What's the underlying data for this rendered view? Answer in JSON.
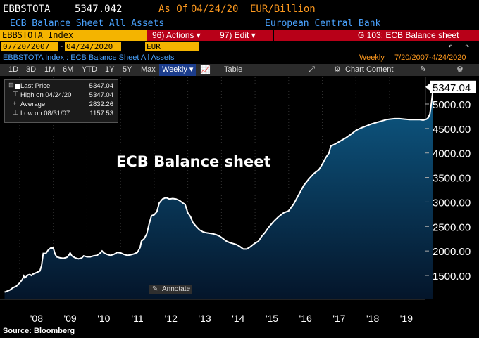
{
  "header": {
    "ticker": "EBBSTOTA",
    "price": "5347.042",
    "as_of_label": "As Of",
    "as_of_date": "04/24/20",
    "unit": "EUR/Billion",
    "description": "ECB Balance Sheet All Assets",
    "source_name": "European Central Bank"
  },
  "command_bar": {
    "index_field": "EBBSTOTA Index",
    "actions_label": "96) Actions ▾",
    "edit_label": "97) Edit ▾",
    "function_label": "G 103: ECB Balance sheet"
  },
  "date_range": {
    "start": "07/20/2007",
    "end": "04/24/2020",
    "currency": "EUR"
  },
  "subheader": {
    "title": "EBBSTOTA Index : ECB Balance Sheet All Assets",
    "frequency": "Weekly",
    "range": "7/20/2007-4/24/2020"
  },
  "toolbar": {
    "periods": [
      "1D",
      "3D",
      "1M",
      "6M",
      "YTD",
      "1Y",
      "5Y",
      "Max"
    ],
    "frequency_select": "Weekly ▾",
    "table_label": "Table",
    "chart_content_label": "Chart Content"
  },
  "legend": {
    "last_price_label": "Last Price",
    "last_price_value": "5347.04",
    "high_label": "High on 04/24/20",
    "high_value": "5347.04",
    "average_label": "Average",
    "average_value": "2832.26",
    "low_label": "Low on 08/31/07",
    "low_value": "1157.53"
  },
  "annotate_label": "Annotate",
  "source_label": "Source: Bloomberg",
  "colors": {
    "line": "#ffffff",
    "fill_top": "#0e5b87",
    "fill_bottom": "#04152a",
    "index_field": "#f4b400",
    "command_bar": "#b80018",
    "blue_text": "#4aa3ff",
    "orange_text": "#ff9a1f"
  },
  "chart_data": {
    "type": "area",
    "title": "ECB Balance sheet",
    "xlabel": "",
    "ylabel": "",
    "x_ticks": [
      "'08",
      "'09",
      "'10",
      "'11",
      "'12",
      "'13",
      "'14",
      "'15",
      "'16",
      "'17",
      "'18",
      "'19"
    ],
    "y_ticks": [
      1500,
      2000,
      2500,
      3000,
      3500,
      4000,
      4500,
      5000
    ],
    "ylim": [
      1150,
      5450
    ],
    "last_value_label": "5347.04",
    "series": [
      {
        "values": [
          [
            2007.55,
            1160
          ],
          [
            2007.7,
            1200
          ],
          [
            2007.8,
            1250
          ],
          [
            2007.9,
            1280
          ],
          [
            2008.0,
            1350
          ],
          [
            2008.08,
            1420
          ],
          [
            2008.12,
            1490
          ],
          [
            2008.15,
            1450
          ],
          [
            2008.2,
            1480
          ],
          [
            2008.25,
            1510
          ],
          [
            2008.3,
            1520
          ],
          [
            2008.35,
            1500
          ],
          [
            2008.4,
            1530
          ],
          [
            2008.5,
            1560
          ],
          [
            2008.6,
            1590
          ],
          [
            2008.65,
            1700
          ],
          [
            2008.7,
            1950
          ],
          [
            2008.78,
            1950
          ],
          [
            2008.85,
            2020
          ],
          [
            2008.92,
            2060
          ],
          [
            2009.0,
            2060
          ],
          [
            2009.05,
            1940
          ],
          [
            2009.1,
            1880
          ],
          [
            2009.2,
            1860
          ],
          [
            2009.3,
            1850
          ],
          [
            2009.4,
            1870
          ],
          [
            2009.45,
            1900
          ],
          [
            2009.5,
            1960
          ],
          [
            2009.55,
            1900
          ],
          [
            2009.65,
            1860
          ],
          [
            2009.75,
            1840
          ],
          [
            2009.85,
            1860
          ],
          [
            2009.9,
            1900
          ],
          [
            2010.0,
            1880
          ],
          [
            2010.1,
            1880
          ],
          [
            2010.2,
            1900
          ],
          [
            2010.3,
            1910
          ],
          [
            2010.4,
            1960
          ],
          [
            2010.45,
            2000
          ],
          [
            2010.5,
            1960
          ],
          [
            2010.6,
            1930
          ],
          [
            2010.7,
            1910
          ],
          [
            2010.8,
            1930
          ],
          [
            2010.9,
            1970
          ],
          [
            2011.0,
            1960
          ],
          [
            2011.1,
            1930
          ],
          [
            2011.2,
            1910
          ],
          [
            2011.3,
            1920
          ],
          [
            2011.4,
            1940
          ],
          [
            2011.5,
            1970
          ],
          [
            2011.58,
            2070
          ],
          [
            2011.62,
            2200
          ],
          [
            2011.7,
            2250
          ],
          [
            2011.78,
            2350
          ],
          [
            2011.85,
            2550
          ],
          [
            2011.92,
            2720
          ],
          [
            2012.0,
            2740
          ],
          [
            2012.08,
            2800
          ],
          [
            2012.15,
            2980
          ],
          [
            2012.25,
            3060
          ],
          [
            2012.35,
            3090
          ],
          [
            2012.45,
            3060
          ],
          [
            2012.55,
            3070
          ],
          [
            2012.65,
            3060
          ],
          [
            2012.75,
            3030
          ],
          [
            2012.85,
            2980
          ],
          [
            2012.92,
            2950
          ],
          [
            2013.0,
            2780
          ],
          [
            2013.08,
            2700
          ],
          [
            2013.15,
            2580
          ],
          [
            2013.25,
            2500
          ],
          [
            2013.35,
            2430
          ],
          [
            2013.45,
            2390
          ],
          [
            2013.55,
            2370
          ],
          [
            2013.65,
            2360
          ],
          [
            2013.75,
            2350
          ],
          [
            2013.85,
            2330
          ],
          [
            2013.95,
            2300
          ],
          [
            2014.05,
            2250
          ],
          [
            2014.15,
            2200
          ],
          [
            2014.25,
            2170
          ],
          [
            2014.35,
            2150
          ],
          [
            2014.45,
            2130
          ],
          [
            2014.55,
            2090
          ],
          [
            2014.65,
            2040
          ],
          [
            2014.75,
            2040
          ],
          [
            2014.85,
            2080
          ],
          [
            2014.92,
            2120
          ],
          [
            2015.0,
            2160
          ],
          [
            2015.1,
            2200
          ],
          [
            2015.2,
            2300
          ],
          [
            2015.3,
            2380
          ],
          [
            2015.4,
            2480
          ],
          [
            2015.55,
            2600
          ],
          [
            2015.7,
            2700
          ],
          [
            2015.85,
            2780
          ],
          [
            2016.0,
            2820
          ],
          [
            2016.15,
            2960
          ],
          [
            2016.3,
            3150
          ],
          [
            2016.45,
            3340
          ],
          [
            2016.6,
            3470
          ],
          [
            2016.75,
            3580
          ],
          [
            2016.9,
            3660
          ],
          [
            2017.0,
            3770
          ],
          [
            2017.1,
            3900
          ],
          [
            2017.2,
            4000
          ],
          [
            2017.25,
            4140
          ],
          [
            2017.4,
            4190
          ],
          [
            2017.55,
            4250
          ],
          [
            2017.7,
            4310
          ],
          [
            2017.85,
            4380
          ],
          [
            2018.0,
            4460
          ],
          [
            2018.15,
            4510
          ],
          [
            2018.3,
            4550
          ],
          [
            2018.45,
            4590
          ],
          [
            2018.6,
            4620
          ],
          [
            2018.75,
            4650
          ],
          [
            2018.9,
            4680
          ],
          [
            2019.0,
            4690
          ],
          [
            2019.15,
            4700
          ],
          [
            2019.3,
            4700
          ],
          [
            2019.45,
            4690
          ],
          [
            2019.6,
            4680
          ],
          [
            2019.75,
            4680
          ],
          [
            2019.9,
            4680
          ],
          [
            2020.0,
            4670
          ],
          [
            2020.1,
            4690
          ],
          [
            2020.15,
            4720
          ],
          [
            2020.2,
            4800
          ],
          [
            2020.25,
            5050
          ],
          [
            2020.3,
            5347.04
          ]
        ]
      }
    ]
  }
}
